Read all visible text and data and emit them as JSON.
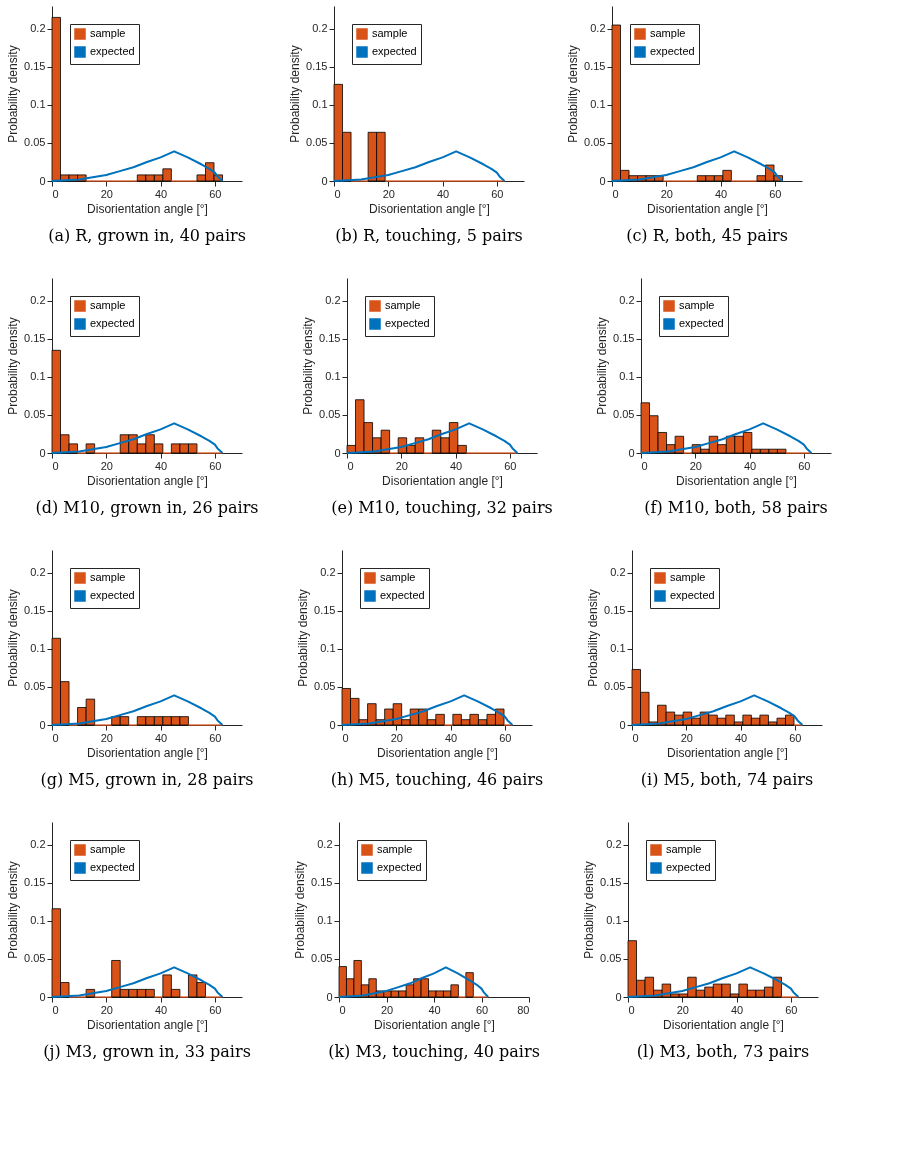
{
  "chart_data": [
    {
      "type": "histogram",
      "title": "(a) R, grown in, 40 pairs",
      "xlabel": "Disorientation angle [°]",
      "ylabel": "Probability density",
      "xlim": [
        0,
        70
      ],
      "xticks": [
        0,
        20,
        40,
        60
      ],
      "ylim": [
        0,
        0.23
      ],
      "yticks": [
        0,
        0.05,
        0.1,
        0.15,
        0.2
      ],
      "grid": false,
      "legend": "top left",
      "bins": [
        0,
        3.14,
        6.28,
        9.42,
        12.57,
        15.71,
        18.85,
        21.99,
        25.13,
        28.27,
        31.42,
        34.56,
        37.7,
        40.84,
        43.98,
        47.12,
        50.27,
        53.41,
        56.55,
        59.69,
        62.83
      ],
      "series": [
        {
          "name": "sample",
          "type": "histogram",
          "color": "#d95319",
          "values": [
            0.215,
            0.008,
            0.008,
            0.008,
            0,
            0,
            0,
            0,
            0,
            0,
            0.008,
            0.008,
            0.008,
            0.016,
            0,
            0,
            0,
            0.008,
            0.024,
            0.008
          ]
        },
        {
          "name": "expected",
          "type": "line",
          "color": "#0072bd",
          "x": [
            0,
            5,
            10,
            15,
            20,
            25,
            30,
            35,
            40,
            45,
            50,
            55,
            58,
            60,
            61,
            62.8
          ],
          "values": [
            0,
            0.001,
            0.002,
            0.005,
            0.008,
            0.013,
            0.018,
            0.025,
            0.031,
            0.039,
            0.031,
            0.022,
            0.016,
            0.011,
            0.006,
            0
          ]
        }
      ]
    },
    {
      "type": "histogram",
      "title": "(b) R, touching, 5 pairs",
      "xlabel": "Disorientation angle [°]",
      "ylabel": "Probability density",
      "xlim": [
        0,
        70
      ],
      "xticks": [
        0,
        20,
        40,
        60
      ],
      "ylim": [
        0,
        0.23
      ],
      "yticks": [
        0,
        0.05,
        0.1,
        0.15,
        0.2
      ],
      "grid": false,
      "legend": "top left",
      "bins": [
        0,
        3.14,
        6.28,
        9.42,
        12.57,
        15.71,
        18.85,
        21.99,
        25.13,
        28.27,
        31.42,
        34.56,
        37.7,
        40.84,
        43.98,
        47.12,
        50.27,
        53.41,
        56.55,
        59.69,
        62.83
      ],
      "series": [
        {
          "name": "sample",
          "type": "histogram",
          "color": "#d95319",
          "values": [
            0.127,
            0.064,
            0,
            0,
            0.064,
            0.064,
            0,
            0,
            0,
            0,
            0,
            0,
            0,
            0,
            0,
            0,
            0,
            0,
            0,
            0
          ]
        },
        {
          "name": "expected",
          "type": "line",
          "color": "#0072bd",
          "x": [
            0,
            5,
            10,
            15,
            20,
            25,
            30,
            35,
            40,
            45,
            50,
            55,
            58,
            60,
            61,
            62.8
          ],
          "values": [
            0,
            0.001,
            0.002,
            0.005,
            0.008,
            0.013,
            0.018,
            0.025,
            0.031,
            0.039,
            0.031,
            0.022,
            0.016,
            0.011,
            0.006,
            0
          ]
        }
      ]
    },
    {
      "type": "histogram",
      "title": "(c) R, both, 45 pairs",
      "xlabel": "Disorientation angle [°]",
      "ylabel": "Probability density",
      "xlim": [
        0,
        70
      ],
      "xticks": [
        0,
        20,
        40,
        60
      ],
      "ylim": [
        0,
        0.23
      ],
      "yticks": [
        0,
        0.05,
        0.1,
        0.15,
        0.2
      ],
      "grid": false,
      "legend": "top left",
      "bins": [
        0,
        3.14,
        6.28,
        9.42,
        12.57,
        15.71,
        18.85,
        21.99,
        25.13,
        28.27,
        31.42,
        34.56,
        37.7,
        40.84,
        43.98,
        47.12,
        50.27,
        53.41,
        56.55,
        59.69,
        62.83
      ],
      "series": [
        {
          "name": "sample",
          "type": "histogram",
          "color": "#d95319",
          "values": [
            0.205,
            0.014,
            0.007,
            0.007,
            0.007,
            0.007,
            0,
            0,
            0,
            0,
            0.007,
            0.007,
            0.007,
            0.014,
            0,
            0,
            0,
            0.007,
            0.021,
            0.007
          ]
        },
        {
          "name": "expected",
          "type": "line",
          "color": "#0072bd",
          "x": [
            0,
            5,
            10,
            15,
            20,
            25,
            30,
            35,
            40,
            45,
            50,
            55,
            58,
            60,
            61,
            62.8
          ],
          "values": [
            0,
            0.001,
            0.002,
            0.005,
            0.008,
            0.013,
            0.018,
            0.025,
            0.031,
            0.039,
            0.031,
            0.022,
            0.016,
            0.011,
            0.006,
            0
          ]
        }
      ]
    },
    {
      "type": "histogram",
      "title": "(d) M10, grown in, 26 pairs",
      "xlabel": "Disorientation angle [°]",
      "ylabel": "Probability density",
      "xlim": [
        0,
        70
      ],
      "xticks": [
        0,
        20,
        40,
        60
      ],
      "ylim": [
        0,
        0.23
      ],
      "yticks": [
        0,
        0.05,
        0.1,
        0.15,
        0.2
      ],
      "grid": false,
      "legend": "top left",
      "bins": [
        0,
        3.14,
        6.28,
        9.42,
        12.57,
        15.71,
        18.85,
        21.99,
        25.13,
        28.27,
        31.42,
        34.56,
        37.7,
        40.84,
        43.98,
        47.12,
        50.27,
        53.41,
        56.55,
        59.69,
        62.83
      ],
      "series": [
        {
          "name": "sample",
          "type": "histogram",
          "color": "#d95319",
          "values": [
            0.135,
            0.024,
            0.012,
            0,
            0.012,
            0,
            0,
            0,
            0.024,
            0.024,
            0.012,
            0.024,
            0.012,
            0,
            0.012,
            0.012,
            0.012,
            0,
            0,
            0
          ]
        },
        {
          "name": "expected",
          "type": "line",
          "color": "#0072bd",
          "x": [
            0,
            5,
            10,
            15,
            20,
            25,
            30,
            35,
            40,
            45,
            50,
            55,
            58,
            60,
            61,
            62.8
          ],
          "values": [
            0,
            0.001,
            0.002,
            0.005,
            0.008,
            0.013,
            0.018,
            0.025,
            0.031,
            0.039,
            0.031,
            0.022,
            0.016,
            0.011,
            0.006,
            0
          ]
        }
      ]
    },
    {
      "type": "histogram",
      "title": "(e) M10, touching, 32 pairs",
      "xlabel": "Disorientation angle [°]",
      "ylabel": "Probability density",
      "xlim": [
        0,
        70
      ],
      "xticks": [
        0,
        20,
        40,
        60
      ],
      "ylim": [
        0,
        0.23
      ],
      "yticks": [
        0,
        0.05,
        0.1,
        0.15,
        0.2
      ],
      "grid": false,
      "legend": "top left",
      "bins": [
        0,
        3.14,
        6.28,
        9.42,
        12.57,
        15.71,
        18.85,
        21.99,
        25.13,
        28.27,
        31.42,
        34.56,
        37.7,
        40.84,
        43.98,
        47.12,
        50.27,
        53.41,
        56.55,
        59.69,
        62.83
      ],
      "series": [
        {
          "name": "sample",
          "type": "histogram",
          "color": "#d95319",
          "values": [
            0.01,
            0.07,
            0.04,
            0.02,
            0.03,
            0,
            0.02,
            0.01,
            0.02,
            0,
            0.03,
            0.02,
            0.04,
            0.01,
            0,
            0,
            0,
            0,
            0,
            0
          ]
        },
        {
          "name": "expected",
          "type": "line",
          "color": "#0072bd",
          "x": [
            0,
            5,
            10,
            15,
            20,
            25,
            30,
            35,
            40,
            45,
            50,
            55,
            58,
            60,
            61,
            62.8
          ],
          "values": [
            0,
            0.001,
            0.002,
            0.005,
            0.008,
            0.013,
            0.018,
            0.025,
            0.031,
            0.039,
            0.031,
            0.022,
            0.016,
            0.011,
            0.006,
            0
          ]
        }
      ]
    },
    {
      "type": "histogram",
      "title": "(f) M10, both, 58 pairs",
      "xlabel": "Disorientation angle [°]",
      "ylabel": "Probability density",
      "xlim": [
        0,
        70
      ],
      "xticks": [
        0,
        20,
        40,
        60
      ],
      "ylim": [
        0,
        0.23
      ],
      "yticks": [
        0,
        0.05,
        0.1,
        0.15,
        0.2
      ],
      "grid": false,
      "legend": "top left",
      "bins": [
        0,
        3.14,
        6.28,
        9.42,
        12.57,
        15.71,
        18.85,
        21.99,
        25.13,
        28.27,
        31.42,
        34.56,
        37.7,
        40.84,
        43.98,
        47.12,
        50.27,
        53.41,
        56.55,
        59.69,
        62.83
      ],
      "series": [
        {
          "name": "sample",
          "type": "histogram",
          "color": "#d95319",
          "values": [
            0.066,
            0.049,
            0.027,
            0.011,
            0.022,
            0,
            0.011,
            0.005,
            0.022,
            0.011,
            0.022,
            0.022,
            0.027,
            0.005,
            0.005,
            0.005,
            0.005,
            0,
            0,
            0
          ]
        },
        {
          "name": "expected",
          "type": "line",
          "color": "#0072bd",
          "x": [
            0,
            5,
            10,
            15,
            20,
            25,
            30,
            35,
            40,
            45,
            50,
            55,
            58,
            60,
            61,
            62.8
          ],
          "values": [
            0,
            0.001,
            0.002,
            0.005,
            0.008,
            0.013,
            0.018,
            0.025,
            0.031,
            0.039,
            0.031,
            0.022,
            0.016,
            0.011,
            0.006,
            0
          ]
        }
      ]
    },
    {
      "type": "histogram",
      "title": "(g) M5, grown in, 28 pairs",
      "xlabel": "Disorientation angle [°]",
      "ylabel": "Probability density",
      "xlim": [
        0,
        70
      ],
      "xticks": [
        0,
        20,
        40,
        60
      ],
      "ylim": [
        0,
        0.23
      ],
      "yticks": [
        0,
        0.05,
        0.1,
        0.15,
        0.2
      ],
      "grid": false,
      "legend": "top left",
      "bins": [
        0,
        3.14,
        6.28,
        9.42,
        12.57,
        15.71,
        18.85,
        21.99,
        25.13,
        28.27,
        31.42,
        34.56,
        37.7,
        40.84,
        43.98,
        47.12,
        50.27,
        53.41,
        56.55,
        59.69,
        62.83
      ],
      "series": [
        {
          "name": "sample",
          "type": "histogram",
          "color": "#d95319",
          "values": [
            0.114,
            0.057,
            0,
            0.023,
            0.034,
            0,
            0,
            0.011,
            0.011,
            0,
            0.011,
            0.011,
            0.011,
            0.011,
            0.011,
            0.011,
            0,
            0,
            0,
            0
          ]
        },
        {
          "name": "expected",
          "type": "line",
          "color": "#0072bd",
          "x": [
            0,
            5,
            10,
            15,
            20,
            25,
            30,
            35,
            40,
            45,
            50,
            55,
            58,
            60,
            61,
            62.8
          ],
          "values": [
            0,
            0.001,
            0.002,
            0.005,
            0.008,
            0.013,
            0.018,
            0.025,
            0.031,
            0.039,
            0.031,
            0.022,
            0.016,
            0.011,
            0.006,
            0
          ]
        }
      ]
    },
    {
      "type": "histogram",
      "title": "(h) M5, touching, 46 pairs",
      "xlabel": "Disorientation angle [°]",
      "ylabel": "Probability density",
      "xlim": [
        0,
        70
      ],
      "xticks": [
        0,
        20,
        40,
        60
      ],
      "ylim": [
        0,
        0.23
      ],
      "yticks": [
        0,
        0.05,
        0.1,
        0.15,
        0.2
      ],
      "grid": false,
      "legend": "top left",
      "bins": [
        0,
        3.14,
        6.28,
        9.42,
        12.57,
        15.71,
        18.85,
        21.99,
        25.13,
        28.27,
        31.42,
        34.56,
        37.7,
        40.84,
        43.98,
        47.12,
        50.27,
        53.41,
        56.55,
        59.69,
        62.83
      ],
      "series": [
        {
          "name": "sample",
          "type": "histogram",
          "color": "#d95319",
          "values": [
            0.048,
            0.035,
            0.007,
            0.028,
            0.007,
            0.021,
            0.028,
            0.007,
            0.021,
            0.021,
            0.007,
            0.014,
            0,
            0.014,
            0.007,
            0.014,
            0.007,
            0.014,
            0.021,
            0
          ]
        },
        {
          "name": "expected",
          "type": "line",
          "color": "#0072bd",
          "x": [
            0,
            5,
            10,
            15,
            20,
            25,
            30,
            35,
            40,
            45,
            50,
            55,
            58,
            60,
            61,
            62.8
          ],
          "values": [
            0,
            0.001,
            0.002,
            0.005,
            0.008,
            0.013,
            0.018,
            0.025,
            0.031,
            0.039,
            0.031,
            0.022,
            0.016,
            0.011,
            0.006,
            0
          ]
        }
      ]
    },
    {
      "type": "histogram",
      "title": "(i) M5, both, 74 pairs",
      "xlabel": "Disorientation angle [°]",
      "ylabel": "Probability density",
      "xlim": [
        0,
        70
      ],
      "xticks": [
        0,
        20,
        40,
        60
      ],
      "ylim": [
        0,
        0.23
      ],
      "yticks": [
        0,
        0.05,
        0.1,
        0.15,
        0.2
      ],
      "grid": false,
      "legend": "top left",
      "bins": [
        0,
        3.14,
        6.28,
        9.42,
        12.57,
        15.71,
        18.85,
        21.99,
        25.13,
        28.27,
        31.42,
        34.56,
        37.7,
        40.84,
        43.98,
        47.12,
        50.27,
        53.41,
        56.55,
        59.69,
        62.83
      ],
      "series": [
        {
          "name": "sample",
          "type": "histogram",
          "color": "#d95319",
          "values": [
            0.073,
            0.043,
            0.004,
            0.026,
            0.017,
            0.013,
            0.017,
            0.009,
            0.017,
            0.013,
            0.009,
            0.013,
            0.004,
            0.013,
            0.009,
            0.013,
            0.004,
            0.009,
            0.013,
            0
          ]
        },
        {
          "name": "expected",
          "type": "line",
          "color": "#0072bd",
          "x": [
            0,
            5,
            10,
            15,
            20,
            25,
            30,
            35,
            40,
            45,
            50,
            55,
            58,
            60,
            61,
            62.8
          ],
          "values": [
            0,
            0.001,
            0.002,
            0.005,
            0.008,
            0.013,
            0.018,
            0.025,
            0.031,
            0.039,
            0.031,
            0.022,
            0.016,
            0.011,
            0.006,
            0
          ]
        }
      ]
    },
    {
      "type": "histogram",
      "title": "(j) M3, grown in, 33 pairs",
      "xlabel": "Disorientation angle [°]",
      "ylabel": "Probability density",
      "xlim": [
        0,
        70
      ],
      "xticks": [
        0,
        20,
        40,
        60
      ],
      "ylim": [
        0,
        0.23
      ],
      "yticks": [
        0,
        0.05,
        0.1,
        0.15,
        0.2
      ],
      "grid": false,
      "legend": "top left",
      "bins": [
        0,
        3.14,
        6.28,
        9.42,
        12.57,
        15.71,
        18.85,
        21.99,
        25.13,
        28.27,
        31.42,
        34.56,
        37.7,
        40.84,
        43.98,
        47.12,
        50.27,
        53.41,
        56.55,
        59.69,
        62.83
      ],
      "series": [
        {
          "name": "sample",
          "type": "histogram",
          "color": "#d95319",
          "values": [
            0.116,
            0.019,
            0,
            0,
            0.01,
            0,
            0,
            0.048,
            0.01,
            0.01,
            0.01,
            0.01,
            0,
            0.029,
            0.01,
            0,
            0.029,
            0.019,
            0,
            0
          ]
        },
        {
          "name": "expected",
          "type": "line",
          "color": "#0072bd",
          "x": [
            0,
            5,
            10,
            15,
            20,
            25,
            30,
            35,
            40,
            45,
            50,
            55,
            58,
            60,
            61,
            62.8
          ],
          "values": [
            0,
            0.001,
            0.002,
            0.005,
            0.008,
            0.013,
            0.018,
            0.025,
            0.031,
            0.039,
            0.031,
            0.022,
            0.016,
            0.011,
            0.006,
            0
          ]
        }
      ]
    },
    {
      "type": "histogram",
      "title": "(k) M3, touching, 40 pairs",
      "xlabel": "Disorientation angle [°]",
      "ylabel": "Probability density",
      "xlim": [
        0,
        80
      ],
      "xticks": [
        0,
        20,
        40,
        60,
        80
      ],
      "ylim": [
        0,
        0.23
      ],
      "yticks": [
        0,
        0.05,
        0.1,
        0.15,
        0.2
      ],
      "grid": false,
      "legend": "top left",
      "bins": [
        0,
        3.14,
        6.28,
        9.42,
        12.57,
        15.71,
        18.85,
        21.99,
        25.13,
        28.27,
        31.42,
        34.56,
        37.7,
        40.84,
        43.98,
        47.12,
        50.27,
        53.41,
        56.55,
        59.69,
        62.83
      ],
      "series": [
        {
          "name": "sample",
          "type": "histogram",
          "color": "#d95319",
          "values": [
            0.04,
            0.024,
            0.048,
            0.016,
            0.024,
            0.008,
            0.008,
            0.008,
            0.008,
            0.016,
            0.024,
            0.024,
            0.008,
            0.008,
            0.008,
            0.016,
            0,
            0.032,
            0,
            0
          ]
        },
        {
          "name": "expected",
          "type": "line",
          "color": "#0072bd",
          "x": [
            0,
            5,
            10,
            15,
            20,
            25,
            30,
            35,
            40,
            45,
            50,
            55,
            58,
            60,
            61,
            62.8
          ],
          "values": [
            0,
            0.001,
            0.002,
            0.005,
            0.008,
            0.013,
            0.018,
            0.025,
            0.031,
            0.039,
            0.031,
            0.022,
            0.016,
            0.011,
            0.006,
            0
          ]
        }
      ]
    },
    {
      "type": "histogram",
      "title": "(l) M3, both, 73 pairs",
      "xlabel": "Disorientation angle [°]",
      "ylabel": "Probability density",
      "xlim": [
        0,
        70
      ],
      "xticks": [
        0,
        20,
        40,
        60
      ],
      "ylim": [
        0,
        0.23
      ],
      "yticks": [
        0,
        0.05,
        0.1,
        0.15,
        0.2
      ],
      "grid": false,
      "legend": "top left",
      "bins": [
        0,
        3.14,
        6.28,
        9.42,
        12.57,
        15.71,
        18.85,
        21.99,
        25.13,
        28.27,
        31.42,
        34.56,
        37.7,
        40.84,
        43.98,
        47.12,
        50.27,
        53.41,
        56.55,
        59.69,
        62.83
      ],
      "series": [
        {
          "name": "sample",
          "type": "histogram",
          "color": "#d95319",
          "values": [
            0.074,
            0.022,
            0.026,
            0.009,
            0.017,
            0.004,
            0.004,
            0.026,
            0.009,
            0.013,
            0.017,
            0.017,
            0.004,
            0.017,
            0.009,
            0.009,
            0.013,
            0.026,
            0,
            0
          ]
        },
        {
          "name": "expected",
          "type": "line",
          "color": "#0072bd",
          "x": [
            0,
            5,
            10,
            15,
            20,
            25,
            30,
            35,
            40,
            45,
            50,
            55,
            58,
            60,
            61,
            62.8
          ],
          "values": [
            0,
            0.001,
            0.002,
            0.005,
            0.008,
            0.013,
            0.018,
            0.025,
            0.031,
            0.039,
            0.031,
            0.022,
            0.016,
            0.011,
            0.006,
            0
          ]
        }
      ]
    }
  ]
}
